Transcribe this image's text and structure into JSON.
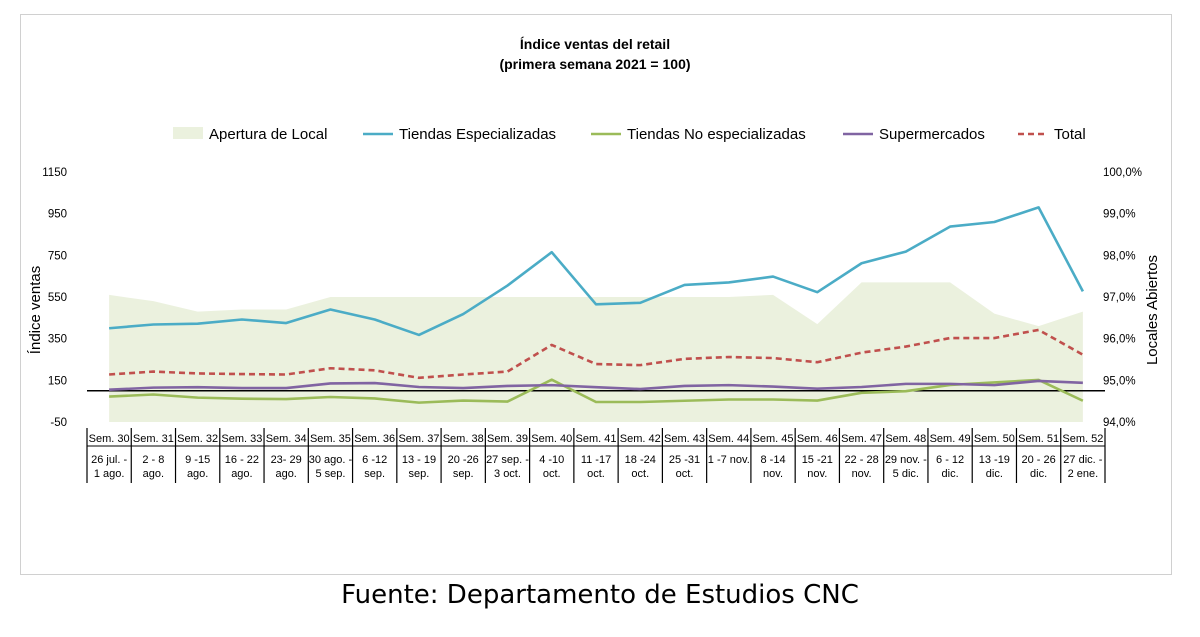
{
  "source_text": "Fuente: Departamento de Estudios CNC",
  "chart_data": {
    "type": "line",
    "title": "Índice ventas del retail",
    "subtitle": "(primera semana 2021 = 100)",
    "ylabel": "Índice ventas",
    "y2label": "Locales Abiertos",
    "ylim": [
      -50,
      1150
    ],
    "yticks": [
      "1150",
      "950",
      "750",
      "550",
      "350",
      "150",
      "-50"
    ],
    "y2lim": [
      94.0,
      100.0
    ],
    "y2ticks": [
      "100,0%",
      "99,0%",
      "98,0%",
      "97,0%",
      "96,0%",
      "95,0%",
      "94,0%"
    ],
    "baseline": 100,
    "legend_position": "top",
    "categories": [
      {
        "week": "Sem. 30",
        "dates": [
          "26 jul. -",
          "1 ago."
        ]
      },
      {
        "week": "Sem. 31",
        "dates": [
          "2 - 8",
          "ago."
        ]
      },
      {
        "week": "Sem. 32",
        "dates": [
          "9 -15",
          "ago."
        ]
      },
      {
        "week": "Sem. 33",
        "dates": [
          "16 - 22",
          "ago."
        ]
      },
      {
        "week": "Sem. 34",
        "dates": [
          "23- 29",
          "ago."
        ]
      },
      {
        "week": "Sem. 35",
        "dates": [
          "30 ago. -",
          "5 sep."
        ]
      },
      {
        "week": "Sem. 36",
        "dates": [
          "6 -12",
          "sep."
        ]
      },
      {
        "week": "Sem. 37",
        "dates": [
          "13 - 19",
          "sep."
        ]
      },
      {
        "week": "Sem. 38",
        "dates": [
          "20 -26",
          "sep."
        ]
      },
      {
        "week": "Sem. 39",
        "dates": [
          "27 sep. -",
          "3 oct."
        ]
      },
      {
        "week": "Sem. 40",
        "dates": [
          "4 -10",
          "oct."
        ]
      },
      {
        "week": "Sem. 41",
        "dates": [
          "11 -17",
          "oct."
        ]
      },
      {
        "week": "Sem. 42",
        "dates": [
          "18 -24",
          "oct."
        ]
      },
      {
        "week": "Sem. 43",
        "dates": [
          "25 -31",
          "oct."
        ]
      },
      {
        "week": "Sem. 44",
        "dates": [
          "1 -7 nov."
        ]
      },
      {
        "week": "Sem. 45",
        "dates": [
          "8 -14",
          "nov."
        ]
      },
      {
        "week": "Sem. 46",
        "dates": [
          "15 -21",
          "nov."
        ]
      },
      {
        "week": "Sem. 47",
        "dates": [
          "22 - 28",
          "nov."
        ]
      },
      {
        "week": "Sem. 48",
        "dates": [
          "29 nov. -",
          "5 dic."
        ]
      },
      {
        "week": "Sem. 49",
        "dates": [
          "6 - 12",
          "dic."
        ]
      },
      {
        "week": "Sem. 50",
        "dates": [
          "13 -19",
          "dic."
        ]
      },
      {
        "week": "Sem. 51",
        "dates": [
          "20 - 26",
          "dic."
        ]
      },
      {
        "week": "Sem. 52",
        "dates": [
          "27 dic. -",
          "2 ene."
        ]
      }
    ],
    "area_series": {
      "name": "Apertura de Local",
      "axis": "right",
      "color": "#ebf1de",
      "values": [
        97.05,
        96.9,
        96.65,
        96.7,
        96.7,
        97.0,
        97.0,
        97.0,
        97.0,
        97.0,
        97.0,
        97.0,
        97.0,
        97.0,
        97.0,
        97.05,
        96.35,
        97.35,
        97.35,
        97.35,
        96.6,
        96.3,
        96.65
      ]
    },
    "series": [
      {
        "name": "Tiendas Especializadas",
        "color": "#4bacc6",
        "style": "solid",
        "values": [
          400,
          418,
          422,
          442,
          425,
          490,
          442,
          368,
          468,
          605,
          765,
          515,
          522,
          608,
          620,
          648,
          573,
          712,
          768,
          888,
          910,
          980,
          577
        ]
      },
      {
        "name": "Tiendas No especializadas",
        "color": "#9bbb59",
        "style": "solid",
        "values": [
          72,
          82,
          67,
          62,
          60,
          70,
          63,
          43,
          53,
          48,
          153,
          46,
          46,
          52,
          58,
          58,
          53,
          90,
          98,
          128,
          140,
          152,
          52
        ]
      },
      {
        "name": "Supermercados",
        "color": "#8064a2",
        "style": "solid",
        "values": [
          105,
          115,
          117,
          113,
          113,
          135,
          137,
          118,
          113,
          123,
          127,
          117,
          108,
          123,
          127,
          120,
          110,
          118,
          133,
          133,
          127,
          147,
          138
        ]
      },
      {
        "name": "Total",
        "color": "#c0504d",
        "style": "dashed",
        "values": [
          178,
          192,
          183,
          180,
          178,
          208,
          198,
          162,
          178,
          192,
          320,
          228,
          223,
          253,
          262,
          257,
          237,
          283,
          312,
          353,
          353,
          392,
          273
        ]
      }
    ]
  }
}
